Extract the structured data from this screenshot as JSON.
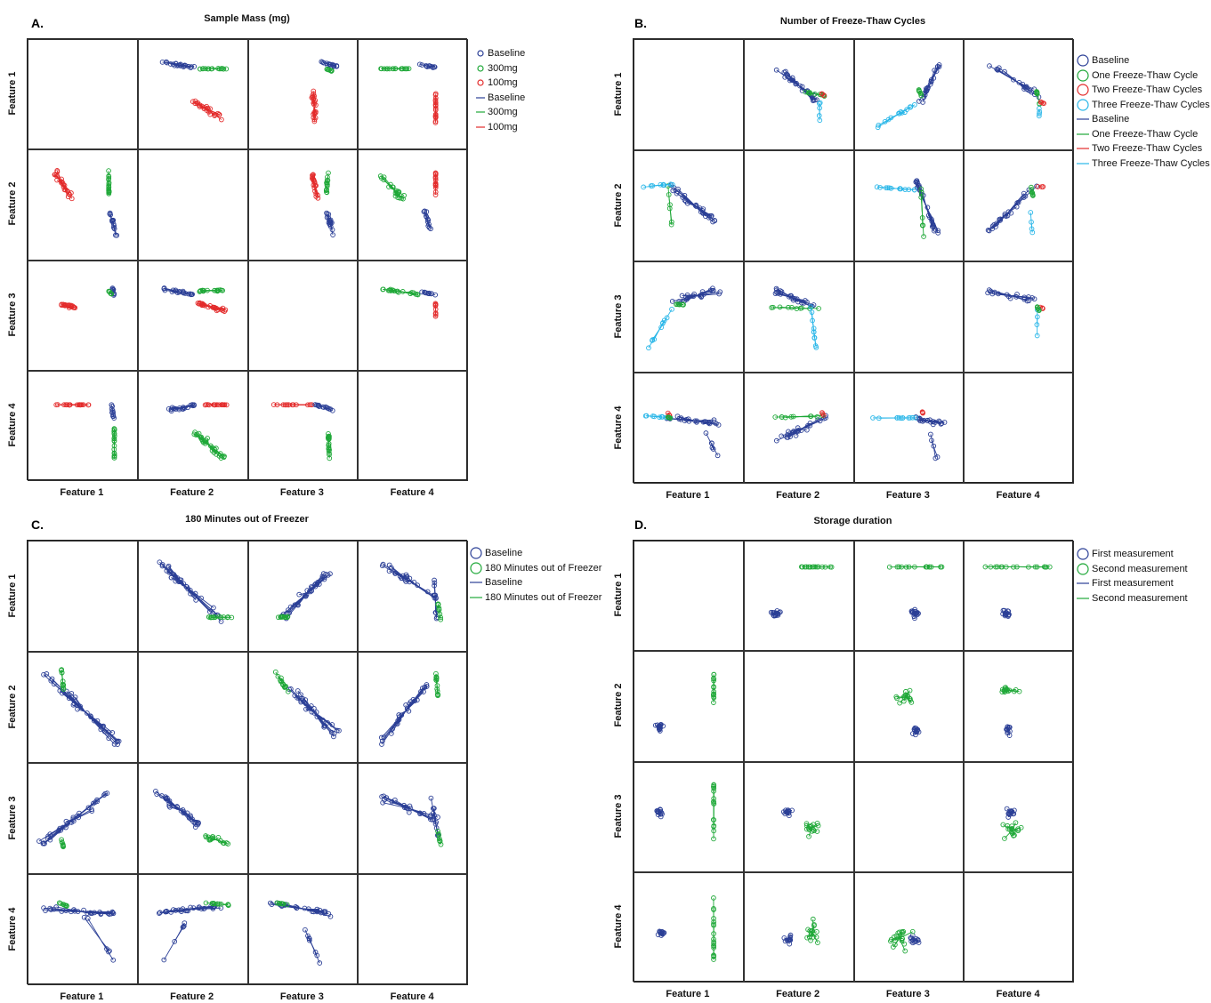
{
  "chart_data": [
    {
      "type": "scatter",
      "panel_letter": "A.",
      "title": "Sample Mass (mg)",
      "features": [
        "Feature 1",
        "Feature 2",
        "Feature 3",
        "Feature 4"
      ],
      "legend": {
        "markers": [
          {
            "name": "Baseline",
            "color": "#2b3f96"
          },
          {
            "name": "300mg",
            "color": "#1fa838"
          },
          {
            "name": "100mg",
            "color": "#e32b2b"
          }
        ],
        "lines": [
          {
            "name": "Baseline",
            "color": "#2b3f96"
          },
          {
            "name": "300mg",
            "color": "#1fa838"
          },
          {
            "name": "100mg",
            "color": "#e32b2b"
          }
        ]
      },
      "grid": false
    },
    {
      "type": "scatter",
      "panel_letter": "B.",
      "title": "Number of Freeze-Thaw Cycles",
      "features": [
        "Feature 1",
        "Feature 2",
        "Feature 3",
        "Feature 4"
      ],
      "legend": {
        "markers": [
          {
            "name": "Baseline",
            "color": "#2b3f96"
          },
          {
            "name": "One Freeze-Thaw Cycle",
            "color": "#1fa838"
          },
          {
            "name": "Two Freeze-Thaw Cycles",
            "color": "#e32b2b"
          },
          {
            "name": "Three Freeze-Thaw Cycles",
            "color": "#28b6e8"
          }
        ],
        "lines": [
          {
            "name": "Baseline",
            "color": "#2b3f96"
          },
          {
            "name": "One Freeze-Thaw Cycle",
            "color": "#1fa838"
          },
          {
            "name": "Two Freeze-Thaw Cycles",
            "color": "#e32b2b"
          },
          {
            "name": "Three Freeze-Thaw Cycles",
            "color": "#28b6e8"
          }
        ]
      },
      "grid": false
    },
    {
      "type": "scatter",
      "panel_letter": "C.",
      "title": "180 Minutes out of Freezer",
      "features": [
        "Feature 1",
        "Feature 2",
        "Feature 3",
        "Feature 4"
      ],
      "legend": {
        "markers": [
          {
            "name": "Baseline",
            "color": "#2b3f96"
          },
          {
            "name": "180 Minutes out of Freezer",
            "color": "#1fa838"
          }
        ],
        "lines": [
          {
            "name": "Baseline",
            "color": "#2b3f96"
          },
          {
            "name": "180 Minutes out of Freezer",
            "color": "#1fa838"
          }
        ]
      },
      "grid": false
    },
    {
      "type": "scatter",
      "panel_letter": "D.",
      "title": "Storage duration",
      "features": [
        "Feature 1",
        "Feature 2",
        "Feature 3",
        "Feature 4"
      ],
      "legend": {
        "markers": [
          {
            "name": "First measurement",
            "color": "#2b3f96"
          },
          {
            "name": "Second measurement",
            "color": "#1fa838"
          }
        ],
        "lines": [
          {
            "name": "First measurement",
            "color": "#2b3f96"
          },
          {
            "name": "Second measurement",
            "color": "#1fa838"
          }
        ]
      },
      "grid": false
    }
  ]
}
